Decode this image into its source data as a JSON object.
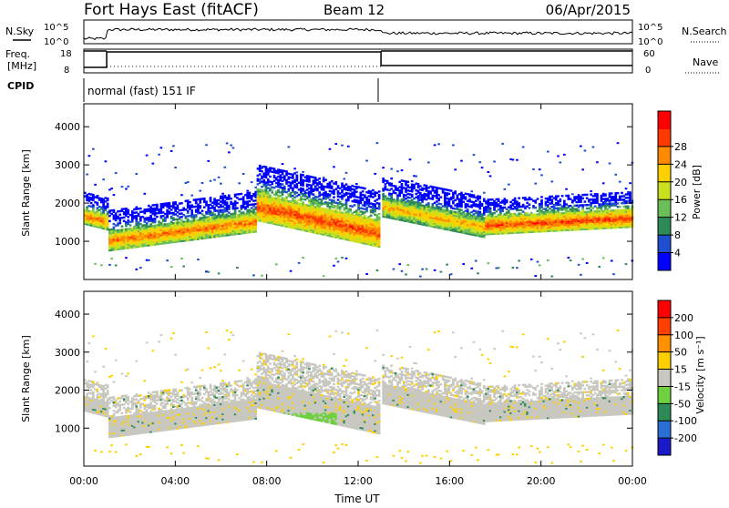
{
  "header": {
    "title": "Fort Hays East (fitACF)",
    "beam": "Beam 12",
    "date": "06/Apr/2015"
  },
  "status_panels": {
    "nsky_label": "N.Sky",
    "nsearch_label": "N.Search",
    "freq_label_1": "Freq.",
    "freq_label_2": "[MHz]",
    "nave_label": "Nave",
    "cpid_label": "CPID",
    "cpid_text": "normal (fast) 151 IF",
    "noise_ticks": [
      "10^5",
      "10^0"
    ],
    "freq_ticks": [
      "18",
      "8"
    ],
    "nave_ticks": [
      "60",
      "0"
    ]
  },
  "chart_data": [
    {
      "type": "heatmap",
      "name": "Power",
      "xlabel": "",
      "ylabel": "Slant Range [km]",
      "x_ticks": [
        "00:00",
        "04:00",
        "08:00",
        "12:00",
        "16:00",
        "20:00",
        "00:00"
      ],
      "y_ticks": [
        1000,
        2000,
        3000,
        4000
      ],
      "ylim": [
        0,
        4600
      ],
      "xlim_hours": [
        0,
        24
      ],
      "colorbar": {
        "label": "Power [dB]",
        "ticks": [
          4,
          8,
          12,
          16,
          20,
          24,
          28
        ],
        "colors": [
          "#0000ff",
          "#1f4fd0",
          "#2e8b57",
          "#6bbf59",
          "#c8e01e",
          "#ffd000",
          "#ff8a00",
          "#ff3a00",
          "#ff0000"
        ]
      },
      "bands": [
        {
          "t0": 0.0,
          "t1": 1.0,
          "r_start": 1650,
          "r_end": 1500,
          "width": 400,
          "peak_db": 24
        },
        {
          "t0": 1.0,
          "t1": 7.5,
          "r_start": 1000,
          "r_end": 1500,
          "width": 500,
          "peak_db": 24
        },
        {
          "t0": 7.5,
          "t1": 12.9,
          "r_start": 1900,
          "r_end": 1200,
          "width": 700,
          "peak_db": 26
        },
        {
          "t0": 13.0,
          "t1": 17.5,
          "r_start": 1900,
          "r_end": 1350,
          "width": 500,
          "peak_db": 22
        },
        {
          "t0": 17.5,
          "t1": 24.0,
          "r_start": 1400,
          "r_end": 1600,
          "width": 450,
          "peak_db": 26
        }
      ]
    },
    {
      "type": "heatmap",
      "name": "Velocity",
      "xlabel": "Time UT",
      "ylabel": "Slant Range [km]",
      "x_ticks": [
        "00:00",
        "04:00",
        "08:00",
        "12:00",
        "16:00",
        "20:00",
        "00:00"
      ],
      "y_ticks": [
        1000,
        2000,
        3000,
        4000
      ],
      "ylim": [
        0,
        4600
      ],
      "xlim_hours": [
        0,
        24
      ],
      "colorbar": {
        "label": "Velocity [m s⁻¹]",
        "ticks": [
          "200",
          "100",
          "50",
          "15",
          "-15",
          "-50",
          "-100",
          "-200"
        ],
        "colors": [
          "#1a1ac8",
          "#2a6fd6",
          "#2e8b57",
          "#6fd040",
          "#c8c8c0",
          "#ffd000",
          "#ff9000",
          "#ff4000",
          "#ff0000"
        ]
      }
    }
  ]
}
